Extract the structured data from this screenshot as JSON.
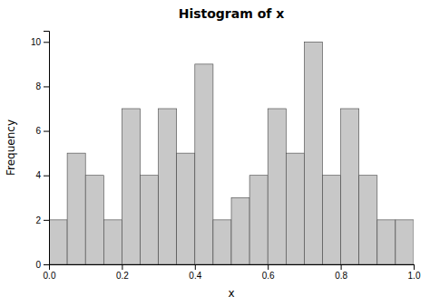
{
  "chart_data": {
    "type": "histogram",
    "title": "Histogram of x",
    "xlabel": "x",
    "ylabel": "Frequency",
    "bins": [
      0,
      0.05,
      0.1,
      0.15,
      0.2,
      0.25,
      0.3,
      0.35,
      0.4,
      0.45,
      0.5,
      0.55,
      0.6,
      0.65,
      0.7,
      0.75,
      0.8,
      0.85,
      0.9,
      0.95,
      1
    ],
    "values": [
      2,
      5,
      4,
      2,
      7,
      4,
      7,
      5,
      9,
      2,
      3,
      4,
      7,
      5,
      10,
      4,
      7,
      4,
      2,
      2
    ],
    "color": "#c8c8c8",
    "xlim": [
      0,
      1
    ],
    "ylim": [
      0,
      10.5
    ],
    "xticks": [
      {
        "value": 0,
        "label": "0.0"
      },
      0.2,
      0.4,
      0.6,
      0.8,
      {
        "value": 1,
        "label": "1.0"
      }
    ],
    "yticks": [
      0,
      2,
      4,
      6,
      8,
      10
    ],
    "grid": false
  }
}
